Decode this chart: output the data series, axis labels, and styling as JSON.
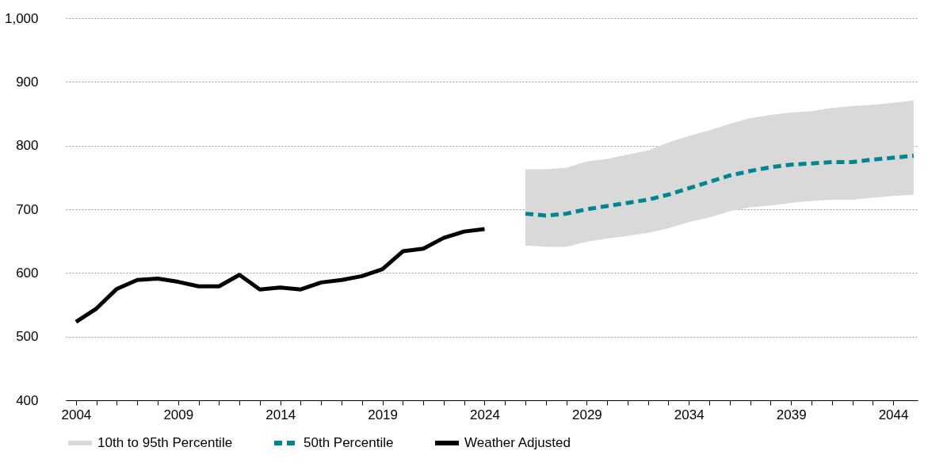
{
  "chart_data": {
    "type": "line",
    "xlim": [
      2003.5,
      2045.2
    ],
    "ylim": [
      400,
      1000
    ],
    "yticks": [
      400,
      500,
      600,
      700,
      800,
      900,
      {
        "value": 1000,
        "label": "1,000"
      }
    ],
    "xticks": [
      2004,
      {
        "value": 2005,
        "label": null
      },
      {
        "value": 2006,
        "label": null
      },
      {
        "value": 2007,
        "label": null
      },
      {
        "value": 2008,
        "label": null
      },
      2009,
      {
        "value": 2010,
        "label": null
      },
      {
        "value": 2011,
        "label": null
      },
      {
        "value": 2012,
        "label": null
      },
      {
        "value": 2013,
        "label": null
      },
      2014,
      {
        "value": 2015,
        "label": null
      },
      {
        "value": 2016,
        "label": null
      },
      {
        "value": 2017,
        "label": null
      },
      {
        "value": 2018,
        "label": null
      },
      2019,
      {
        "value": 2020,
        "label": null
      },
      {
        "value": 2021,
        "label": null
      },
      {
        "value": 2022,
        "label": null
      },
      {
        "value": 2023,
        "label": null
      },
      2024,
      {
        "value": 2025,
        "label": null
      },
      {
        "value": 2026,
        "label": null
      },
      {
        "value": 2027,
        "label": null
      },
      {
        "value": 2028,
        "label": null
      },
      2029,
      {
        "value": 2030,
        "label": null
      },
      {
        "value": 2031,
        "label": null
      },
      {
        "value": 2032,
        "label": null
      },
      {
        "value": 2033,
        "label": null
      },
      2034,
      {
        "value": 2035,
        "label": null
      },
      {
        "value": 2036,
        "label": null
      },
      {
        "value": 2037,
        "label": null
      },
      {
        "value": 2038,
        "label": null
      },
      2039,
      {
        "value": 2040,
        "label": null
      },
      {
        "value": 2041,
        "label": null
      },
      {
        "value": 2042,
        "label": null
      },
      {
        "value": 2043,
        "label": null
      },
      2044
    ],
    "grid": "y",
    "legend": "bottom",
    "series": [
      {
        "name": "10th to 95th Percentile",
        "type": "area",
        "color": "#d9d9d9"
      },
      {
        "name": "50th Percentile",
        "line_style": "dashed",
        "color": "#00868f",
        "x": [
          2026,
          2027,
          2028,
          2029,
          2030,
          2031,
          2032,
          2033,
          2034,
          2035,
          2036,
          2037,
          2038,
          2039,
          2040,
          2041,
          2042,
          2043,
          2044,
          2045
        ],
        "values": [
          693,
          690,
          693,
          700,
          705,
          710,
          715,
          723,
          733,
          743,
          753,
          760,
          766,
          770,
          772,
          774,
          774,
          778,
          781,
          784
        ],
        "lower": [
          643,
          641,
          641,
          649,
          654,
          658,
          663,
          670,
          680,
          687,
          697,
          703,
          706,
          710,
          713,
          715,
          715,
          718,
          721,
          723
        ],
        "upper": [
          763,
          763,
          765,
          775,
          779,
          786,
          792,
          805,
          815,
          824,
          834,
          843,
          848,
          852,
          854,
          859,
          862,
          864,
          867,
          871
        ]
      },
      {
        "name": "Weather Adjusted",
        "line_style": "solid",
        "color": "#000000",
        "x": [
          2004,
          2005,
          2006,
          2007,
          2008,
          2009,
          2010,
          2011,
          2012,
          2013,
          2014,
          2015,
          2016,
          2017,
          2018,
          2019,
          2020,
          2021,
          2022,
          2023,
          2024
        ],
        "values": [
          523,
          544,
          575,
          589,
          591,
          586,
          579,
          579,
          597,
          574,
          577,
          574,
          585,
          589,
          595,
          606,
          634,
          638,
          655,
          665,
          669
        ]
      }
    ]
  }
}
